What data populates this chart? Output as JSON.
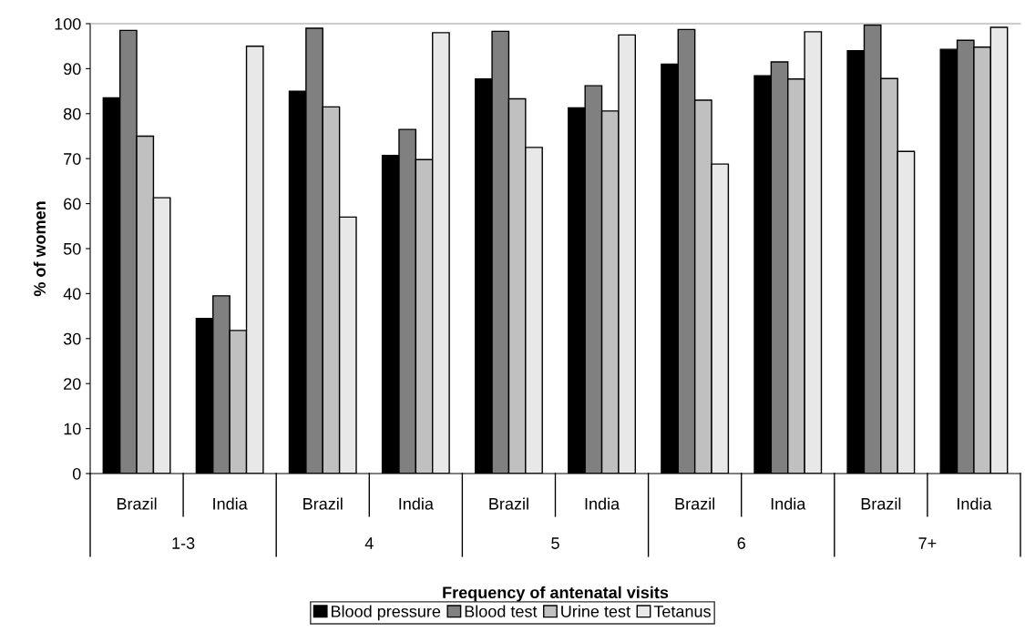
{
  "chart_data": {
    "type": "bar",
    "xlabel": "Frequency of antenatal visits",
    "ylabel": "% of women",
    "categories": [
      "Brazil",
      "India",
      "Brazil",
      "India",
      "Brazil",
      "India",
      "Brazil",
      "India",
      "Brazil",
      "India"
    ],
    "series": [
      {
        "name": "Blood pressure",
        "color": "#000000",
        "values": [
          83.5,
          34.5,
          85,
          70.7,
          87.7,
          81.3,
          91,
          88.4,
          94,
          94.3
        ]
      },
      {
        "name": "Blood test",
        "color": "#808080",
        "values": [
          98.5,
          39.5,
          99,
          76.5,
          98.3,
          86.2,
          98.7,
          91.5,
          99.7,
          96.3
        ]
      },
      {
        "name": "Urine test",
        "color": "#c0c0c0",
        "values": [
          75,
          31.8,
          81.5,
          69.8,
          83.3,
          80.6,
          83,
          87.7,
          87.8,
          94.8
        ]
      },
      {
        "name": "Tetanus",
        "color": "#e8e8e8",
        "values": [
          61.3,
          95,
          57,
          98,
          72.5,
          97.5,
          68.8,
          98.2,
          71.6,
          99.2
        ]
      }
    ],
    "annotations": [
      "1-3",
      "4",
      "5",
      "6",
      "7+"
    ],
    "ylim": [
      0,
      100
    ],
    "yticks": [
      0,
      10,
      20,
      30,
      40,
      50,
      60,
      70,
      80,
      90,
      100
    ],
    "grid": false,
    "legend": "bottom"
  }
}
